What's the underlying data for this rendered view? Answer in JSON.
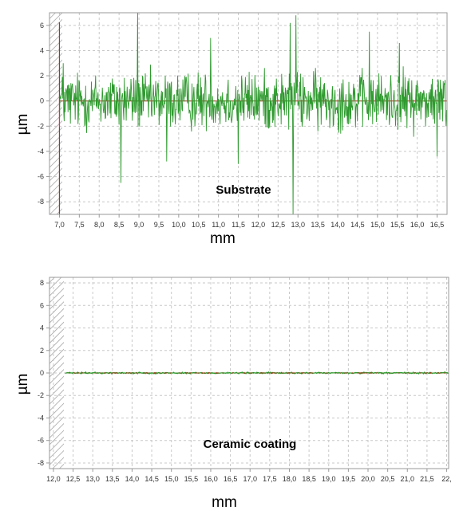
{
  "colors": {
    "signal": "#2e9a2e",
    "baseline": "#a03a1a",
    "grid": "#c8c8c8",
    "frame": "#9a9a9a",
    "hatch": "#9a9a9a"
  },
  "chart_data": [
    {
      "type": "line",
      "annotation": "Substrate",
      "xlabel": "mm",
      "ylabel": "µm",
      "xlim": [
        6.75,
        16.75
      ],
      "ylim": [
        -9,
        7
      ],
      "xticks": [
        7.0,
        7.5,
        8.0,
        8.5,
        9.0,
        9.5,
        10.0,
        10.5,
        11.0,
        11.5,
        12.0,
        12.5,
        13.0,
        13.5,
        14.0,
        14.5,
        15.0,
        15.5,
        16.0,
        16.5
      ],
      "xtick_labels": [
        "7,0",
        "7,5",
        "8,0",
        "8,5",
        "9,0",
        "9,5",
        "10,0",
        "10,5",
        "11,0",
        "11,5",
        "12,0",
        "12,5",
        "13,0",
        "13,5",
        "14,0",
        "14,5",
        "15,0",
        "15,5",
        "16,0",
        "16,5"
      ],
      "yticks": [
        -8,
        -6,
        -4,
        -2,
        0,
        2,
        4,
        6
      ],
      "ytick_labels": [
        "-8",
        "-6",
        "-4",
        "-2",
        "0",
        "2",
        "4",
        "6"
      ],
      "grid": true,
      "x_start": 7.0,
      "x_end": 16.75,
      "amplitude": 2.1,
      "extremes": [
        {
          "x": 8.55,
          "y": -6.5
        },
        {
          "x": 8.97,
          "y": 7.0
        },
        {
          "x": 12.8,
          "y": 6.2
        },
        {
          "x": 12.88,
          "y": -9.0
        },
        {
          "x": 12.95,
          "y": 6.8
        },
        {
          "x": 7.1,
          "y": 3.0
        },
        {
          "x": 9.7,
          "y": -4.8
        },
        {
          "x": 10.8,
          "y": 5.0
        },
        {
          "x": 11.5,
          "y": -5.0
        },
        {
          "x": 14.8,
          "y": 5.5
        },
        {
          "x": 15.55,
          "y": 4.6
        },
        {
          "x": 16.5,
          "y": -4.4
        }
      ]
    },
    {
      "type": "line",
      "annotation": "Ceramic coating",
      "xlabel": "mm",
      "ylabel": "µm",
      "xlim": [
        11.9,
        22.05
      ],
      "ylim": [
        -8.5,
        8.5
      ],
      "xticks": [
        12.0,
        12.5,
        13.0,
        13.5,
        14.0,
        14.5,
        15.0,
        15.5,
        16.0,
        16.5,
        17.0,
        17.5,
        18.0,
        18.5,
        19.0,
        19.5,
        20.0,
        20.5,
        21.0,
        21.5,
        22.0
      ],
      "xtick_labels": [
        "12,0",
        "12,5",
        "13,0",
        "13,5",
        "14,0",
        "14,5",
        "15,0",
        "15,5",
        "16,0",
        "16,5",
        "17,0",
        "17,5",
        "18,0",
        "18,5",
        "19,0",
        "19,5",
        "20,0",
        "20,5",
        "21,0",
        "21,5",
        "22,"
      ],
      "yticks": [
        -8,
        -6,
        -4,
        -2,
        0,
        2,
        4,
        6,
        8
      ],
      "ytick_labels": [
        "-8",
        "-6",
        "-4",
        "-2",
        "0",
        "2",
        "4",
        "6",
        "8"
      ],
      "grid": true,
      "x_start": 12.3,
      "x_end": 22.05,
      "amplitude": 0.06,
      "extremes": []
    }
  ]
}
